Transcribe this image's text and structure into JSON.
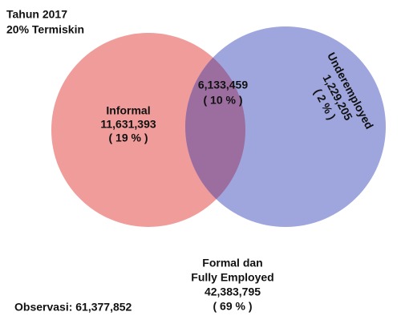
{
  "header": {
    "title": "Tahun 2017",
    "subtitle": "20% Termiskin"
  },
  "sets": [
    {
      "label": "Informal",
      "count": "11,631,393",
      "share": "( 19 % )"
    },
    {
      "label": "Underemployed",
      "count": "1,229,205",
      "share": "( 2 % )"
    }
  ],
  "overlap": {
    "count": "6,133,459",
    "share": "( 10 % )"
  },
  "outside": {
    "label_lines": [
      "Formal dan",
      "Fully Employed"
    ],
    "count": "42,383,795",
    "share": "( 69 % )"
  },
  "footer": {
    "observations": "Observasi: 61,377,852"
  }
}
